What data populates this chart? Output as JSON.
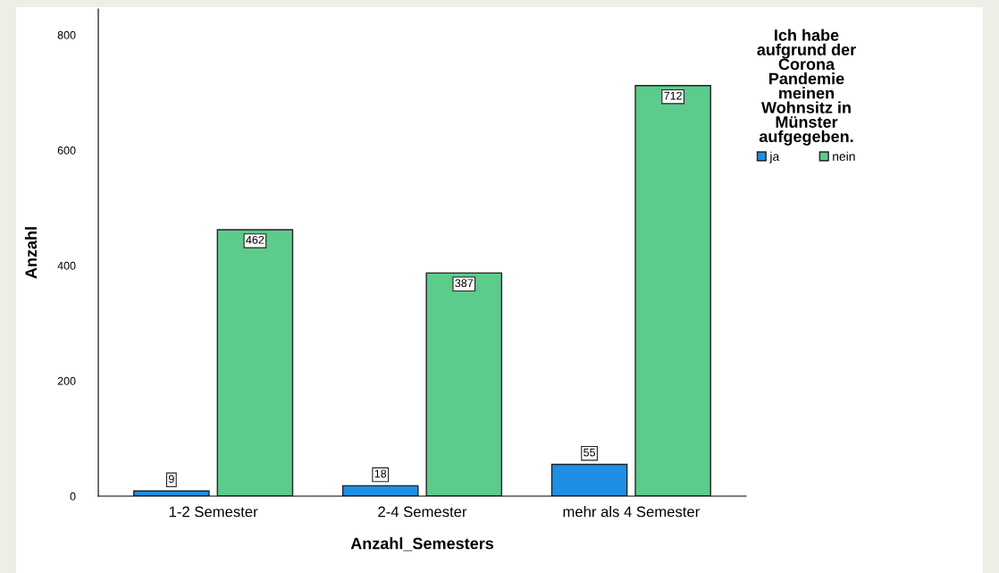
{
  "chart_data": {
    "type": "bar",
    "xlabel": "Anzahl_Semesters",
    "ylabel": "Anzahl",
    "legend_title": "Ich habe\naufgrund der\nCorona\nPandemie\nmeinen\nWohnsitz in\nMünster\naufgegeben.",
    "categories": [
      "1-2 Semester",
      "2-4 Semester",
      "mehr als 4 Semester"
    ],
    "series": [
      {
        "name": "ja",
        "color": "#1e8fe3",
        "values": [
          9,
          18,
          55
        ]
      },
      {
        "name": "nein",
        "color": "#5ccb8b",
        "values": [
          462,
          387,
          712
        ]
      }
    ],
    "ylim": [
      0,
      845
    ],
    "yticks": [
      0,
      200,
      400,
      600,
      800
    ],
    "data_labels": true,
    "grid": false,
    "legend": "top right"
  }
}
